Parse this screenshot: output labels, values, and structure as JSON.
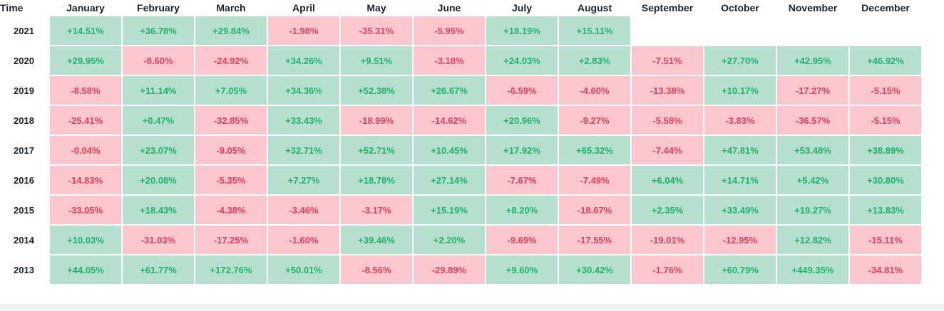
{
  "table": {
    "time_header": "Time",
    "months": [
      "January",
      "February",
      "March",
      "April",
      "May",
      "June",
      "July",
      "August",
      "September",
      "October",
      "November",
      "December"
    ],
    "rows": [
      {
        "year": "2021",
        "values": [
          "+14.51%",
          "+36.78%",
          "+29.84%",
          "-1.98%",
          "-35.31%",
          "-5.95%",
          "+18.19%",
          "+15.11%",
          "",
          "",
          "",
          ""
        ]
      },
      {
        "year": "2020",
        "values": [
          "+29.95%",
          "-8.60%",
          "-24.92%",
          "+34.26%",
          "+9.51%",
          "-3.18%",
          "+24.03%",
          "+2.83%",
          "-7.51%",
          "+27.70%",
          "+42.95%",
          "+46.92%"
        ]
      },
      {
        "year": "2019",
        "values": [
          "-8.58%",
          "+11.14%",
          "+7.05%",
          "+34.36%",
          "+52.38%",
          "+26.67%",
          "-6.59%",
          "-4.60%",
          "-13.38%",
          "+10.17%",
          "-17.27%",
          "-5.15%"
        ]
      },
      {
        "year": "2018",
        "values": [
          "-25.41%",
          "+0.47%",
          "-32.85%",
          "+33.43%",
          "-18.99%",
          "-14.62%",
          "+20.96%",
          "-9.27%",
          "-5.58%",
          "-3.83%",
          "-36.57%",
          "-5.15%"
        ]
      },
      {
        "year": "2017",
        "values": [
          "-0.04%",
          "+23.07%",
          "-9.05%",
          "+32.71%",
          "+52.71%",
          "+10.45%",
          "+17.92%",
          "+65.32%",
          "-7.44%",
          "+47.81%",
          "+53.48%",
          "+38.89%"
        ]
      },
      {
        "year": "2016",
        "values": [
          "-14.83%",
          "+20.08%",
          "-5.35%",
          "+7.27%",
          "+18.78%",
          "+27.14%",
          "-7.67%",
          "-7.49%",
          "+6.04%",
          "+14.71%",
          "+5.42%",
          "+30.80%"
        ]
      },
      {
        "year": "2015",
        "values": [
          "-33.05%",
          "+18.43%",
          "-4.38%",
          "-3.46%",
          "-3.17%",
          "+15.19%",
          "+8.20%",
          "-18.67%",
          "+2.35%",
          "+33.49%",
          "+19.27%",
          "+13.83%"
        ]
      },
      {
        "year": "2014",
        "values": [
          "+10.03%",
          "-31.03%",
          "-17.25%",
          "-1.60%",
          "+39.46%",
          "+2.20%",
          "-9.69%",
          "-17.55%",
          "-19.01%",
          "-12.95%",
          "+12.82%",
          "-15.11%"
        ]
      },
      {
        "year": "2013",
        "values": [
          "+44.05%",
          "+61.77%",
          "+172.76%",
          "+50.01%",
          "-8.56%",
          "-29.89%",
          "+9.60%",
          "+30.42%",
          "-1.76%",
          "+60.79%",
          "+449.35%",
          "-34.81%"
        ]
      }
    ]
  },
  "colors": {
    "positive_bg": "#b7dfcf",
    "positive_text": "#1eb36d",
    "negative_bg": "#fcc6cf",
    "negative_text": "#e2405c"
  }
}
